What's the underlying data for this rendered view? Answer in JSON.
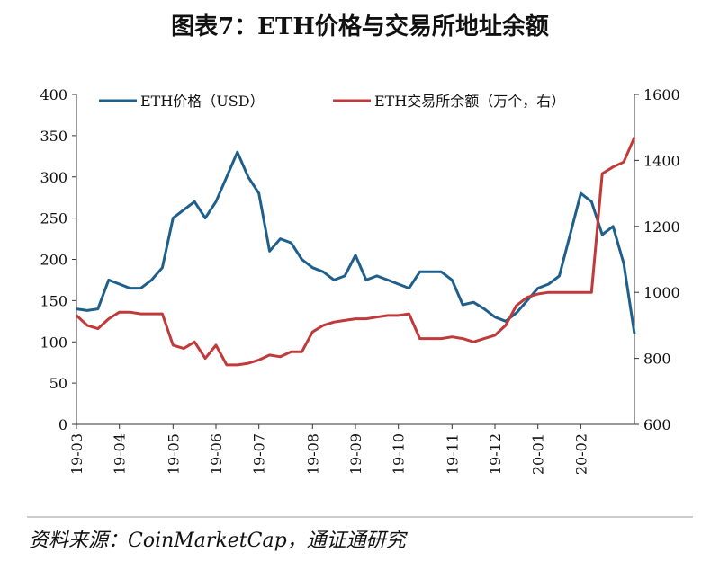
{
  "chart_data": {
    "type": "line",
    "title": "图表7：ETH价格与交易所地址余额",
    "source": "资料来源：CoinMarketCap，通证通研究",
    "categories": [
      "19-03",
      null,
      null,
      null,
      "19-04",
      null,
      null,
      null,
      null,
      "19-05",
      null,
      null,
      null,
      "19-06",
      null,
      null,
      null,
      "19-07",
      null,
      null,
      null,
      null,
      "19-08",
      null,
      null,
      null,
      "19-09",
      null,
      null,
      null,
      "19-10",
      null,
      null,
      null,
      null,
      "19-11",
      null,
      null,
      null,
      "19-12",
      null,
      null,
      null,
      "20-01",
      null,
      null,
      null,
      "20-02",
      null,
      null,
      null,
      null,
      null
    ],
    "series": [
      {
        "name": "ETH价格（USD）",
        "color": "#1f5f8b",
        "axis": "y",
        "values": [
          140,
          138,
          140,
          175,
          170,
          165,
          165,
          175,
          190,
          250,
          260,
          270,
          250,
          270,
          300,
          330,
          300,
          280,
          210,
          225,
          220,
          200,
          190,
          185,
          175,
          180,
          205,
          175,
          180,
          175,
          170,
          165,
          185,
          185,
          185,
          175,
          145,
          148,
          140,
          130,
          125,
          135,
          150,
          165,
          170,
          180,
          230,
          280,
          270,
          230,
          240,
          195,
          110
        ]
      },
      {
        "name": "ETH交易所余额（万个，右）",
        "color": "#c0393b",
        "axis": "y2",
        "values": [
          930,
          900,
          890,
          920,
          940,
          940,
          935,
          935,
          935,
          840,
          830,
          850,
          800,
          840,
          780,
          780,
          785,
          795,
          810,
          805,
          820,
          820,
          880,
          900,
          910,
          915,
          920,
          920,
          925,
          930,
          930,
          935,
          860,
          860,
          860,
          865,
          860,
          850,
          860,
          870,
          900,
          960,
          985,
          995,
          1000,
          1000,
          1000,
          1000,
          1000,
          1360,
          1380,
          1395,
          1470
        ]
      }
    ],
    "ylim": [
      0,
      400
    ],
    "yticks": [
      0,
      50,
      100,
      150,
      200,
      250,
      300,
      350,
      400
    ],
    "y2lim": [
      600,
      1600
    ],
    "y2ticks": [
      600,
      800,
      1000,
      1200,
      1400,
      1600
    ],
    "legend": "top"
  }
}
